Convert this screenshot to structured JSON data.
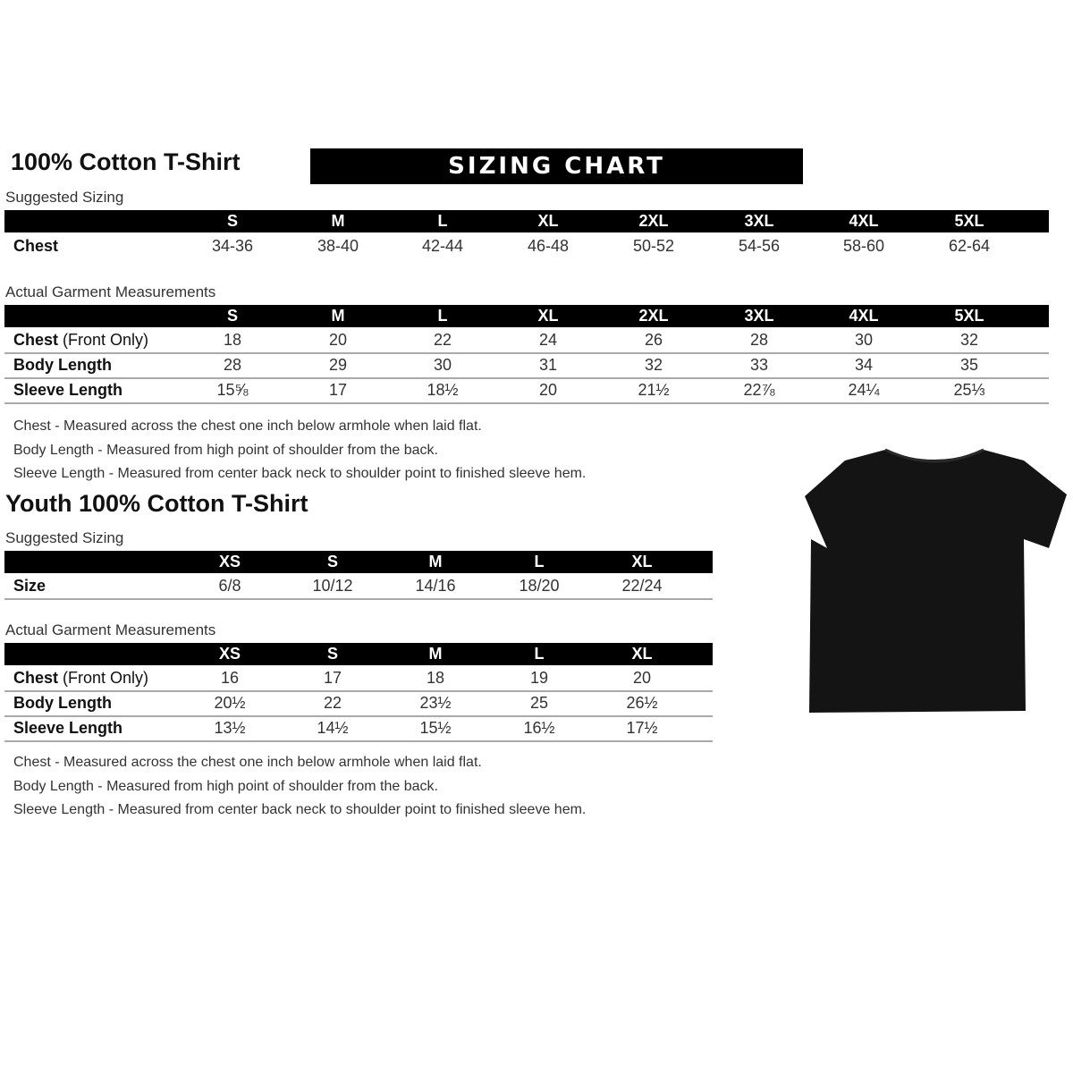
{
  "adult": {
    "title": "100% Cotton T-Shirt",
    "banner": "SIZING CHART",
    "suggested": {
      "label": "Suggested Sizing",
      "sizes": [
        "S",
        "M",
        "L",
        "XL",
        "2XL",
        "3XL",
        "4XL",
        "5XL"
      ],
      "rows": [
        {
          "label": "Chest",
          "values": [
            "34-36",
            "38-40",
            "42-44",
            "46-48",
            "50-52",
            "54-56",
            "58-60",
            "62-64"
          ]
        }
      ]
    },
    "actual": {
      "label": "Actual Garment Measurements",
      "sizes": [
        "S",
        "M",
        "L",
        "XL",
        "2XL",
        "3XL",
        "4XL",
        "5XL"
      ],
      "rows": [
        {
          "label": "Chest",
          "label_suffix": "(Front Only)",
          "values": [
            "18",
            "20",
            "22",
            "24",
            "26",
            "28",
            "30",
            "32"
          ]
        },
        {
          "label": "Body Length",
          "values": [
            "28",
            "29",
            "30",
            "31",
            "32",
            "33",
            "34",
            "35"
          ]
        },
        {
          "label": "Sleeve Length",
          "values": [
            "15⅝",
            "17",
            "18½",
            "20",
            "21½",
            "22⅞",
            "24¼",
            "25⅓"
          ]
        }
      ]
    },
    "notes": [
      "Chest - Measured across the chest one inch below armhole when laid flat.",
      "Body Length - Measured from high point of shoulder from the back.",
      "Sleeve Length - Measured from center back neck to shoulder point to finished sleeve hem."
    ]
  },
  "youth": {
    "title": "Youth 100% Cotton T-Shirt",
    "suggested": {
      "label": "Suggested Sizing",
      "sizes": [
        "XS",
        "S",
        "M",
        "L",
        "XL"
      ],
      "rows": [
        {
          "label": "Size",
          "values": [
            "6/8",
            "10/12",
            "14/16",
            "18/20",
            "22/24"
          ]
        }
      ]
    },
    "actual": {
      "label": "Actual Garment Measurements",
      "sizes": [
        "XS",
        "S",
        "M",
        "L",
        "XL"
      ],
      "rows": [
        {
          "label": "Chest",
          "label_suffix": "(Front Only)",
          "values": [
            "16",
            "17",
            "18",
            "19",
            "20"
          ]
        },
        {
          "label": "Body Length",
          "values": [
            "20½",
            "22",
            "23½",
            "25",
            "26½"
          ]
        },
        {
          "label": "Sleeve Length",
          "values": [
            "13½",
            "14½",
            "15½",
            "16½",
            "17½"
          ]
        }
      ]
    },
    "notes": [
      "Chest - Measured across the chest one inch below armhole when laid flat.",
      "Body Length - Measured from high point of shoulder from the back.",
      "Sleeve Length - Measured from center back neck to shoulder point to finished sleeve hem."
    ]
  },
  "image": {
    "icon": "black-tshirt",
    "color": "#111111"
  }
}
